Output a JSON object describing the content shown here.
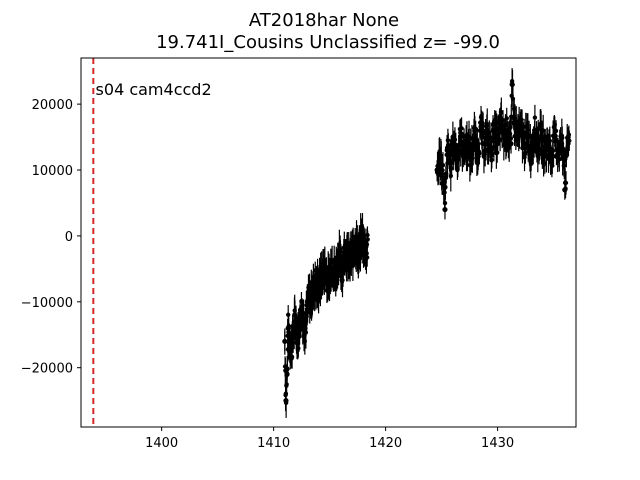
{
  "chart_data": {
    "type": "scatter",
    "title": [
      "AT2018har  None",
      "19.741I_Cousins Unclassified z= -99.0"
    ],
    "xlabel": "",
    "ylabel": "",
    "xlim": [
      1392.8,
      1437.0
    ],
    "ylim": [
      -29000,
      27000
    ],
    "x_ticks": [
      1400,
      1410,
      1420,
      1430
    ],
    "y_ticks": [
      -20000,
      -10000,
      0,
      10000,
      20000
    ],
    "grid": false,
    "marker_color": "#000000",
    "vline": {
      "x": 1393.9,
      "color": "#d62728",
      "style": "dashed"
    },
    "annotation": {
      "text": "s04 cam4ccd2",
      "x": 1394.1,
      "y": 22000
    },
    "segments": [
      {
        "x_range": [
          1411.0,
          1418.4
        ],
        "points": [
          [
            1411.0,
            -16000
          ],
          [
            1411.3,
            -14000
          ],
          [
            1411.6,
            -17000
          ],
          [
            1411.9,
            -13000
          ],
          [
            1412.2,
            -15000
          ],
          [
            1412.5,
            -11000
          ],
          [
            1412.8,
            -14000
          ],
          [
            1413.1,
            -10000
          ],
          [
            1413.4,
            -9000
          ],
          [
            1413.7,
            -7000
          ],
          [
            1414.0,
            -8000
          ],
          [
            1414.3,
            -6000
          ],
          [
            1414.6,
            -5000
          ],
          [
            1414.9,
            -7000
          ],
          [
            1415.2,
            -4000
          ],
          [
            1415.5,
            -6000
          ],
          [
            1415.8,
            -3000
          ],
          [
            1416.1,
            -5000
          ],
          [
            1416.4,
            -2000
          ],
          [
            1416.7,
            -4000
          ],
          [
            1417.0,
            -3000
          ],
          [
            1417.3,
            -1000
          ],
          [
            1417.6,
            -3000
          ],
          [
            1417.9,
            0
          ],
          [
            1418.2,
            -2000
          ],
          [
            1411.1,
            -25000
          ],
          [
            1411.2,
            -21000
          ]
        ]
      },
      {
        "x_range": [
          1424.6,
          1436.4
        ],
        "points": [
          [
            1424.6,
            10000
          ],
          [
            1424.9,
            12000
          ],
          [
            1425.2,
            8000
          ],
          [
            1425.5,
            13000
          ],
          [
            1425.8,
            11000
          ],
          [
            1426.1,
            14000
          ],
          [
            1426.4,
            12000
          ],
          [
            1426.7,
            15000
          ],
          [
            1427.0,
            13000
          ],
          [
            1427.3,
            14000
          ],
          [
            1427.6,
            12000
          ],
          [
            1427.9,
            15000
          ],
          [
            1428.2,
            13000
          ],
          [
            1428.5,
            16000
          ],
          [
            1428.8,
            14000
          ],
          [
            1429.1,
            15000
          ],
          [
            1429.4,
            13000
          ],
          [
            1429.7,
            16000
          ],
          [
            1430.0,
            14000
          ],
          [
            1430.3,
            17000
          ],
          [
            1430.6,
            15000
          ],
          [
            1430.9,
            16000
          ],
          [
            1431.2,
            14000
          ],
          [
            1431.5,
            17000
          ],
          [
            1431.8,
            15000
          ],
          [
            1432.1,
            16000
          ],
          [
            1432.4,
            14000
          ],
          [
            1432.7,
            15000
          ],
          [
            1433.0,
            13000
          ],
          [
            1433.3,
            16000
          ],
          [
            1433.6,
            14000
          ],
          [
            1433.9,
            15000
          ],
          [
            1434.2,
            13000
          ],
          [
            1434.5,
            14000
          ],
          [
            1434.8,
            12000
          ],
          [
            1435.1,
            15000
          ],
          [
            1435.4,
            13000
          ],
          [
            1435.7,
            14000
          ],
          [
            1436.0,
            12000
          ],
          [
            1436.3,
            15000
          ],
          [
            1431.3,
            23000
          ],
          [
            1436.0,
            7000
          ],
          [
            1425.3,
            4000
          ]
        ]
      }
    ]
  }
}
